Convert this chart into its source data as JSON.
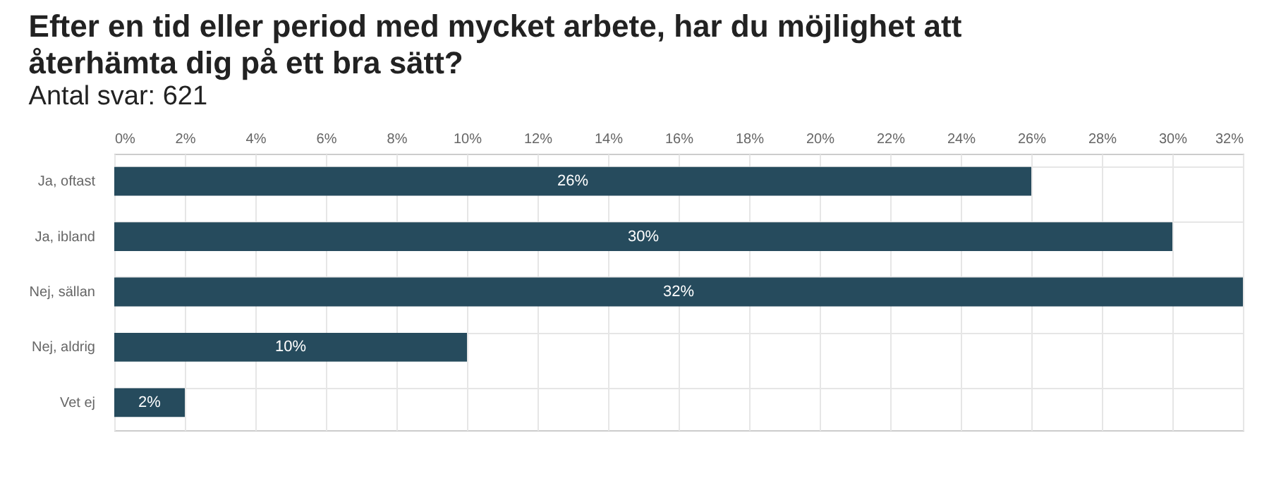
{
  "chart_data": {
    "type": "bar",
    "orientation": "horizontal",
    "title": "Efter en tid eller period med mycket arbete, har du möjlighet att återhämta dig på ett bra sätt?",
    "subtitle": "Antal svar: 621",
    "categories": [
      "Ja, oftast",
      "Ja, ibland",
      "Nej, sällan",
      "Nej, aldrig",
      "Vet ej"
    ],
    "values": [
      26,
      30,
      32,
      10,
      2
    ],
    "value_labels": [
      "26%",
      "30%",
      "32%",
      "10%",
      "2%"
    ],
    "color": "#264b5d",
    "xlim": [
      0,
      32
    ],
    "xticks": [
      {
        "value": 0,
        "label": "0%"
      },
      {
        "value": 2,
        "label": "2%"
      },
      {
        "value": 4,
        "label": "4%"
      },
      {
        "value": 6,
        "label": "6%"
      },
      {
        "value": 8,
        "label": "8%"
      },
      {
        "value": 10,
        "label": "10%"
      },
      {
        "value": 12,
        "label": "12%"
      },
      {
        "value": 14,
        "label": "14%"
      },
      {
        "value": 16,
        "label": "16%"
      },
      {
        "value": 18,
        "label": "18%"
      },
      {
        "value": 20,
        "label": "20%"
      },
      {
        "value": 22,
        "label": "22%"
      },
      {
        "value": 24,
        "label": "24%"
      },
      {
        "value": 26,
        "label": "26%"
      },
      {
        "value": 28,
        "label": "28%"
      },
      {
        "value": 30,
        "label": "30%"
      },
      {
        "value": 32,
        "label": "32%"
      }
    ],
    "grid": true
  }
}
